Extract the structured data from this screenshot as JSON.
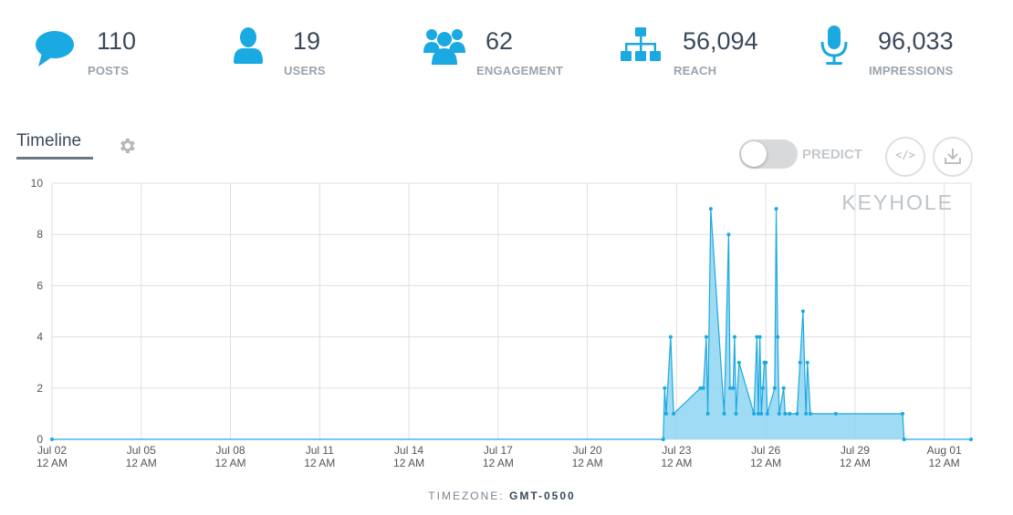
{
  "stats": [
    {
      "name": "posts",
      "value": "110",
      "label": "POSTS",
      "icon": "speech-bubble-icon"
    },
    {
      "name": "users",
      "value": "19",
      "label": "USERS",
      "icon": "user-icon"
    },
    {
      "name": "engagement",
      "value": "62",
      "label": "ENGAGEMENT",
      "icon": "group-icon"
    },
    {
      "name": "reach",
      "value": "56,094",
      "label": "REACH",
      "icon": "sitemap-icon"
    },
    {
      "name": "impressions",
      "value": "96,033",
      "label": "IMPRESSIONS",
      "icon": "microphone-icon"
    }
  ],
  "tab": {
    "label": "Timeline"
  },
  "predict": {
    "label": "PREDICT",
    "enabled": false
  },
  "buttons": {
    "embed": "</>",
    "embed_icon": "code-icon",
    "download_icon": "download-icon"
  },
  "watermark": "KEYHOLE",
  "timezone": {
    "prefix": "TIMEZONE:",
    "value": "GMT-0500"
  },
  "colors": {
    "accent": "#1ba9e1",
    "fill": "#8fd5f2",
    "text": "#3a4a5c",
    "muted": "#9aa4ad"
  },
  "chart_data": {
    "type": "area",
    "x_unit": "days since Jul 02 12 AM",
    "x_ticks": [
      {
        "day": 0,
        "line1": "Jul 02",
        "line2": "12 AM"
      },
      {
        "day": 3,
        "line1": "Jul 05",
        "line2": "12 AM"
      },
      {
        "day": 6,
        "line1": "Jul 08",
        "line2": "12 AM"
      },
      {
        "day": 9,
        "line1": "Jul 11",
        "line2": "12 AM"
      },
      {
        "day": 12,
        "line1": "Jul 14",
        "line2": "12 AM"
      },
      {
        "day": 15,
        "line1": "Jul 17",
        "line2": "12 AM"
      },
      {
        "day": 18,
        "line1": "Jul 20",
        "line2": "12 AM"
      },
      {
        "day": 21,
        "line1": "Jul 23",
        "line2": "12 AM"
      },
      {
        "day": 24,
        "line1": "Jul 26",
        "line2": "12 AM"
      },
      {
        "day": 27,
        "line1": "Jul 29",
        "line2": "12 AM"
      },
      {
        "day": 30,
        "line1": "Aug 01",
        "line2": "12 AM"
      }
    ],
    "xlim": [
      0,
      30.9
    ],
    "ylim": [
      0,
      10
    ],
    "y_ticks": [
      0,
      2,
      4,
      6,
      8,
      10
    ],
    "grid": true,
    "points": [
      [
        0,
        0
      ],
      [
        20.55,
        0
      ],
      [
        20.6,
        2
      ],
      [
        20.65,
        1
      ],
      [
        20.8,
        4
      ],
      [
        20.9,
        1
      ],
      [
        21.8,
        2
      ],
      [
        21.9,
        2
      ],
      [
        22.0,
        4
      ],
      [
        22.05,
        1
      ],
      [
        22.15,
        9
      ],
      [
        22.6,
        1
      ],
      [
        22.75,
        8
      ],
      [
        22.8,
        2
      ],
      [
        22.9,
        2
      ],
      [
        22.95,
        4
      ],
      [
        23.0,
        1
      ],
      [
        23.1,
        3
      ],
      [
        23.6,
        1
      ],
      [
        23.7,
        4
      ],
      [
        23.75,
        1
      ],
      [
        23.8,
        4
      ],
      [
        23.85,
        1
      ],
      [
        23.9,
        2
      ],
      [
        23.95,
        3
      ],
      [
        24.0,
        3
      ],
      [
        24.05,
        1
      ],
      [
        24.3,
        2
      ],
      [
        24.35,
        9
      ],
      [
        24.4,
        4
      ],
      [
        24.45,
        1
      ],
      [
        24.6,
        2
      ],
      [
        24.65,
        1
      ],
      [
        24.8,
        1
      ],
      [
        25.05,
        1
      ],
      [
        25.15,
        3
      ],
      [
        25.25,
        5
      ],
      [
        25.35,
        1
      ],
      [
        25.4,
        3
      ],
      [
        25.5,
        1
      ],
      [
        26.35,
        1
      ],
      [
        28.6,
        1
      ],
      [
        28.65,
        0
      ],
      [
        30.9,
        0
      ]
    ]
  }
}
